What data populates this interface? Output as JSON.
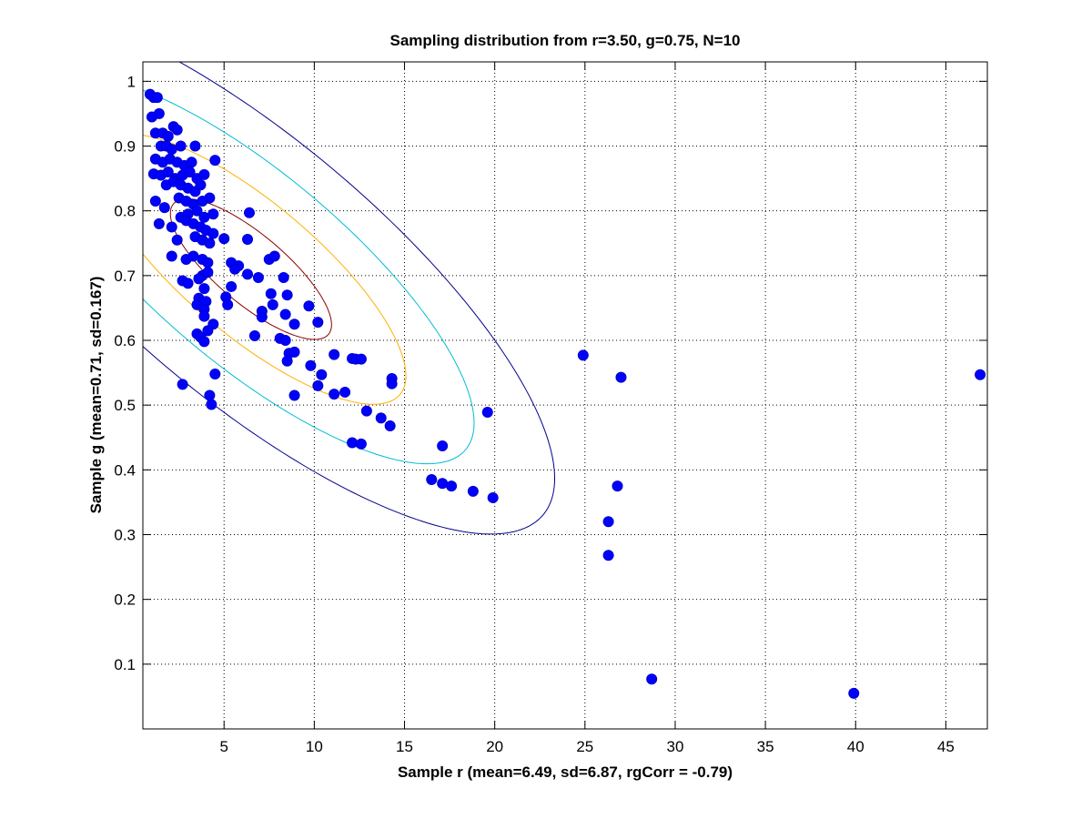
{
  "chart_data": {
    "type": "scatter",
    "title": "Sampling distribution from r=3.50, g=0.75, N=10",
    "xlabel": "Sample r (mean=6.49, sd=6.87, rgCorr = -0.79)",
    "ylabel": "Sample g (mean=0.71, sd=0.167)",
    "xlim": [
      0.5,
      47.3
    ],
    "ylim": [
      0,
      1.03
    ],
    "xticks": [
      5,
      10,
      15,
      20,
      25,
      30,
      35,
      40,
      45
    ],
    "yticks": [
      0.1,
      0.2,
      0.3,
      0.4,
      0.5,
      0.6,
      0.7,
      0.8,
      0.9,
      1
    ],
    "xtick_labels": [
      "5",
      "10",
      "15",
      "20",
      "25",
      "30",
      "35",
      "40",
      "45"
    ],
    "ytick_labels": [
      "0.1",
      "0.2",
      "0.3",
      "0.4",
      "0.5",
      "0.6",
      "0.7",
      "0.8",
      "0.9",
      "1"
    ],
    "grid": true,
    "marker_color": "#0000ff",
    "contour_colors": [
      "#00008b",
      "#00bcd4",
      "#ffb000",
      "#8b0000"
    ],
    "contours": {
      "center_x": 6.49,
      "center_y": 0.71,
      "sd_x": 6.87,
      "sd_y": 0.167,
      "corr": -0.79,
      "levels_sd": [
        2.45,
        1.8,
        1.25,
        0.65
      ]
    },
    "points": [
      [
        0.9,
        0.98
      ],
      [
        1.1,
        0.975
      ],
      [
        1.3,
        0.975
      ],
      [
        1.0,
        0.945
      ],
      [
        1.4,
        0.95
      ],
      [
        1.2,
        0.92
      ],
      [
        1.6,
        0.92
      ],
      [
        1.9,
        0.915
      ],
      [
        2.2,
        0.93
      ],
      [
        2.4,
        0.925
      ],
      [
        1.5,
        0.9
      ],
      [
        1.8,
        0.9
      ],
      [
        2.1,
        0.895
      ],
      [
        2.6,
        0.9
      ],
      [
        3.4,
        0.9
      ],
      [
        1.2,
        0.88
      ],
      [
        1.6,
        0.875
      ],
      [
        2.0,
        0.88
      ],
      [
        2.4,
        0.875
      ],
      [
        2.8,
        0.87
      ],
      [
        3.2,
        0.875
      ],
      [
        4.5,
        0.878
      ],
      [
        1.1,
        0.857
      ],
      [
        1.5,
        0.855
      ],
      [
        1.9,
        0.86
      ],
      [
        2.3,
        0.85
      ],
      [
        2.7,
        0.855
      ],
      [
        3.1,
        0.86
      ],
      [
        3.5,
        0.85
      ],
      [
        3.9,
        0.856
      ],
      [
        1.8,
        0.84
      ],
      [
        2.2,
        0.845
      ],
      [
        2.6,
        0.84
      ],
      [
        3.0,
        0.835
      ],
      [
        3.4,
        0.83
      ],
      [
        3.7,
        0.84
      ],
      [
        1.2,
        0.815
      ],
      [
        1.7,
        0.805
      ],
      [
        2.5,
        0.82
      ],
      [
        2.9,
        0.815
      ],
      [
        3.3,
        0.81
      ],
      [
        3.8,
        0.815
      ],
      [
        4.2,
        0.82
      ],
      [
        2.6,
        0.79
      ],
      [
        3.0,
        0.795
      ],
      [
        3.5,
        0.8
      ],
      [
        3.9,
        0.79
      ],
      [
        4.4,
        0.795
      ],
      [
        6.4,
        0.797
      ],
      [
        1.4,
        0.78
      ],
      [
        2.1,
        0.775
      ],
      [
        2.9,
        0.785
      ],
      [
        3.3,
        0.78
      ],
      [
        3.7,
        0.775
      ],
      [
        4.0,
        0.77
      ],
      [
        4.4,
        0.765
      ],
      [
        3.4,
        0.76
      ],
      [
        3.8,
        0.755
      ],
      [
        4.2,
        0.75
      ],
      [
        2.4,
        0.755
      ],
      [
        5.0,
        0.757
      ],
      [
        6.3,
        0.756
      ],
      [
        2.9,
        0.725
      ],
      [
        2.1,
        0.73
      ],
      [
        3.3,
        0.73
      ],
      [
        3.8,
        0.725
      ],
      [
        4.1,
        0.72
      ],
      [
        5.4,
        0.72
      ],
      [
        5.8,
        0.715
      ],
      [
        7.5,
        0.725
      ],
      [
        7.8,
        0.73
      ],
      [
        3.8,
        0.7
      ],
      [
        4.1,
        0.705
      ],
      [
        5.6,
        0.71
      ],
      [
        6.3,
        0.702
      ],
      [
        6.9,
        0.697
      ],
      [
        8.3,
        0.697
      ],
      [
        2.7,
        0.692
      ],
      [
        3.0,
        0.688
      ],
      [
        3.6,
        0.695
      ],
      [
        3.9,
        0.68
      ],
      [
        5.4,
        0.683
      ],
      [
        3.6,
        0.665
      ],
      [
        4.0,
        0.66
      ],
      [
        5.1,
        0.667
      ],
      [
        7.6,
        0.672
      ],
      [
        8.5,
        0.67
      ],
      [
        3.5,
        0.655
      ],
      [
        3.9,
        0.648
      ],
      [
        5.2,
        0.655
      ],
      [
        7.7,
        0.655
      ],
      [
        9.7,
        0.653
      ],
      [
        7.1,
        0.645
      ],
      [
        7.1,
        0.636
      ],
      [
        8.4,
        0.64
      ],
      [
        3.9,
        0.637
      ],
      [
        8.9,
        0.625
      ],
      [
        10.2,
        0.628
      ],
      [
        4.4,
        0.625
      ],
      [
        4.1,
        0.615
      ],
      [
        3.5,
        0.61
      ],
      [
        3.7,
        0.605
      ],
      [
        3.9,
        0.598
      ],
      [
        6.7,
        0.607
      ],
      [
        8.1,
        0.603
      ],
      [
        8.4,
        0.6
      ],
      [
        8.6,
        0.58
      ],
      [
        8.9,
        0.582
      ],
      [
        8.5,
        0.568
      ],
      [
        11.1,
        0.578
      ],
      [
        12.1,
        0.572
      ],
      [
        12.3,
        0.571
      ],
      [
        12.6,
        0.571
      ],
      [
        9.8,
        0.561
      ],
      [
        4.5,
        0.548
      ],
      [
        10.4,
        0.547
      ],
      [
        14.3,
        0.541
      ],
      [
        14.3,
        0.533
      ],
      [
        10.2,
        0.53
      ],
      [
        2.7,
        0.532
      ],
      [
        11.1,
        0.517
      ],
      [
        11.7,
        0.52
      ],
      [
        4.2,
        0.515
      ],
      [
        8.9,
        0.515
      ],
      [
        4.3,
        0.501
      ],
      [
        12.9,
        0.491
      ],
      [
        13.7,
        0.48
      ],
      [
        14.2,
        0.468
      ],
      [
        12.1,
        0.442
      ],
      [
        12.6,
        0.44
      ],
      [
        17.1,
        0.437
      ],
      [
        19.6,
        0.489
      ],
      [
        16.5,
        0.385
      ],
      [
        17.1,
        0.379
      ],
      [
        17.6,
        0.375
      ],
      [
        18.8,
        0.367
      ],
      [
        19.9,
        0.357
      ],
      [
        24.9,
        0.577
      ],
      [
        27.0,
        0.543
      ],
      [
        26.8,
        0.375
      ],
      [
        26.3,
        0.32
      ],
      [
        26.3,
        0.268
      ],
      [
        28.7,
        0.077
      ],
      [
        39.9,
        0.055
      ],
      [
        46.9,
        0.547
      ]
    ]
  }
}
